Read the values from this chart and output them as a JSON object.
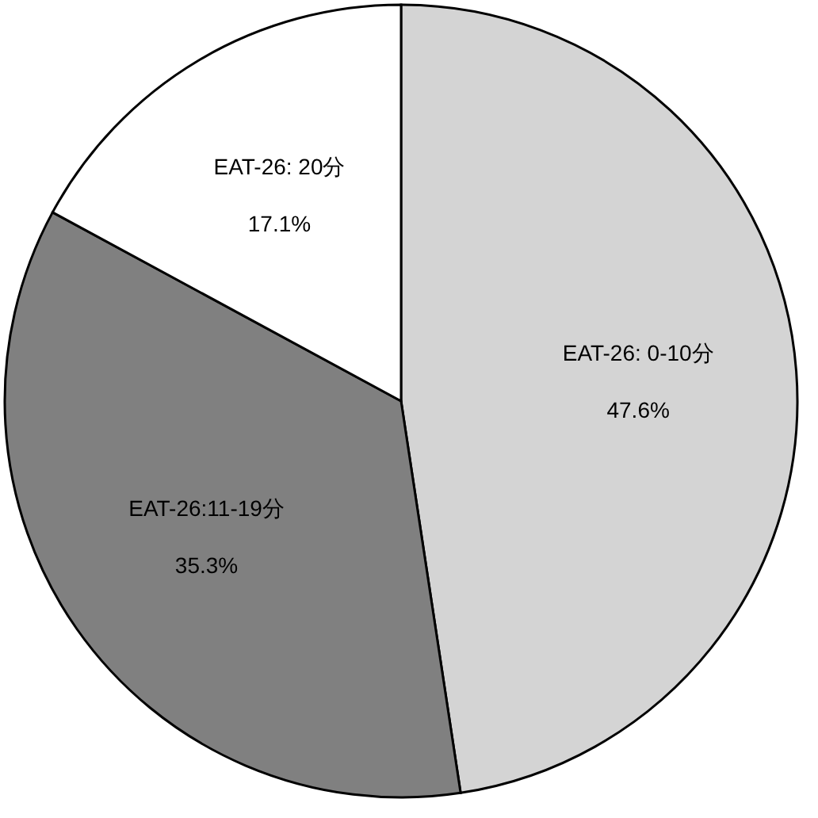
{
  "chart_data": {
    "type": "pie",
    "categories": [
      "EAT-26: 0-10分",
      "EAT-26:11-19分",
      "EAT-26:   20分"
    ],
    "values": [
      47.6,
      35.3,
      17.1
    ],
    "colors": [
      "#d4d4d4",
      "#808080",
      "#ffffff"
    ],
    "value_labels": [
      "47.6%",
      "35.3%",
      "17.1%"
    ],
    "legend": false
  }
}
